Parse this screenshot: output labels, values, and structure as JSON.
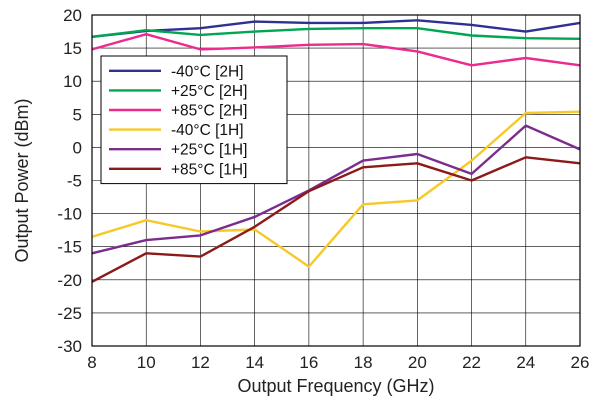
{
  "chart_data": {
    "type": "line",
    "title": "",
    "xlabel": "Output  Frequency (GHz)",
    "ylabel": "Output Power (dBm)",
    "xlim": [
      8,
      26
    ],
    "ylim": [
      -30,
      20
    ],
    "xticks": [
      8,
      10,
      12,
      14,
      16,
      18,
      20,
      22,
      24,
      26
    ],
    "yticks": [
      20,
      15,
      10,
      5,
      0,
      -5,
      -10,
      -15,
      -20,
      -25,
      -30
    ],
    "grid": true,
    "legend_position": "upper-left",
    "x": [
      8,
      10,
      12,
      14,
      16,
      18,
      20,
      22,
      24,
      26
    ],
    "series": [
      {
        "name": "-40°C [2H]",
        "color": "#2e3192",
        "values": [
          16.7,
          17.6,
          18.0,
          19.0,
          18.8,
          18.8,
          19.2,
          18.5,
          17.5,
          18.8
        ]
      },
      {
        "name": "+25°C [2H]",
        "color": "#00a651",
        "values": [
          16.7,
          17.7,
          17.0,
          17.5,
          17.9,
          18.0,
          18.0,
          16.9,
          16.5,
          16.4
        ]
      },
      {
        "name": "+85°C [2H]",
        "color": "#ec2a8f",
        "values": [
          14.8,
          17.1,
          14.8,
          15.1,
          15.5,
          15.6,
          14.5,
          12.4,
          13.5,
          12.4
        ]
      },
      {
        "name": "-40°C [1H]",
        "color": "#f7c928",
        "values": [
          -13.5,
          -11.0,
          -12.7,
          -12.4,
          -18.0,
          -8.6,
          -8.0,
          -2.0,
          5.2,
          5.4
        ]
      },
      {
        "name": "+25°C [1H]",
        "color": "#7b2d8e",
        "values": [
          -16.0,
          -14.0,
          -13.3,
          -10.5,
          -6.5,
          -2.0,
          -1.0,
          -4.0,
          3.3,
          -0.3
        ]
      },
      {
        "name": "+85°C [1H]",
        "color": "#8b1a1a",
        "values": [
          -20.3,
          -16.0,
          -16.5,
          -12.0,
          -6.6,
          -3.0,
          -2.4,
          -5.0,
          -1.5,
          -2.4
        ]
      }
    ]
  }
}
